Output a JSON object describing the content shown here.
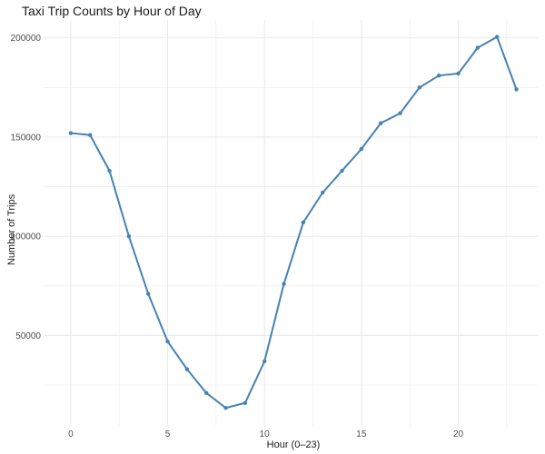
{
  "chart_data": {
    "type": "line",
    "title": "Taxi Trip Counts by Hour of Day",
    "xlabel": "Hour (0–23)",
    "ylabel": "Number of Trips",
    "x": [
      0,
      1,
      2,
      3,
      4,
      5,
      6,
      7,
      8,
      9,
      10,
      11,
      12,
      13,
      14,
      15,
      16,
      17,
      18,
      19,
      20,
      21,
      22,
      23
    ],
    "series": [
      {
        "values": [
          152000,
          151000,
          133000,
          100000,
          71000,
          47000,
          33000,
          21000,
          13500,
          16000,
          37000,
          76000,
          107000,
          122000,
          133000,
          144000,
          157000,
          162000,
          175000,
          181000,
          182000,
          195000,
          200500,
          174000
        ],
        "color": "#4682b4"
      }
    ],
    "xticks": [
      0,
      5,
      10,
      15,
      20
    ],
    "yticks": [
      50000,
      100000,
      150000,
      200000
    ],
    "xlim": [
      -1.4,
      24.1
    ],
    "ylim": [
      4000,
      209000
    ],
    "grid": true,
    "grid_color": "#ebebeb"
  }
}
